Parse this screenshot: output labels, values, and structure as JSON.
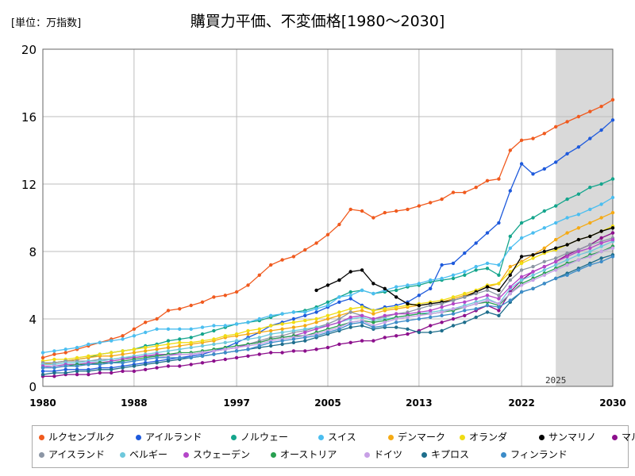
{
  "unit_label": "[単位：万指数]",
  "chart_data": {
    "type": "line",
    "title": "購買力平価、不変価格[1980～2030]",
    "ylim": [
      0,
      20
    ],
    "yticks": [
      0,
      4,
      8,
      12,
      16,
      20
    ],
    "xlim": [
      1980,
      2030
    ],
    "xticks": [
      1980,
      1988,
      1997,
      2005,
      2013,
      2022,
      2030
    ],
    "forecast_start": 2025,
    "forecast_label": "2025",
    "grid": true,
    "legend_position": "bottom",
    "series": [
      {
        "name": "ルクセンブルク",
        "color": "#f05a1e",
        "start": 1980,
        "values": [
          1.7,
          1.9,
          2.0,
          2.2,
          2.4,
          2.6,
          2.8,
          3.0,
          3.4,
          3.8,
          4.0,
          4.5,
          4.6,
          4.8,
          5.0,
          5.3,
          5.4,
          5.6,
          6.0,
          6.6,
          7.2,
          7.5,
          7.7,
          8.1,
          8.5,
          9.0,
          9.6,
          10.5,
          10.4,
          10.0,
          10.3,
          10.4,
          10.5,
          10.7,
          10.9,
          11.1,
          11.5,
          11.5,
          11.8,
          12.2,
          12.3,
          14.0,
          14.6,
          14.7,
          15.0,
          15.4,
          15.7,
          16.0,
          16.3,
          16.6,
          17.0
        ]
      },
      {
        "name": "アイルランド",
        "color": "#1e5adc",
        "start": 1980,
        "values": [
          0.9,
          0.9,
          1.0,
          1.0,
          1.0,
          1.1,
          1.1,
          1.2,
          1.3,
          1.4,
          1.5,
          1.6,
          1.7,
          1.8,
          1.9,
          2.1,
          2.3,
          2.6,
          2.9,
          3.2,
          3.6,
          3.8,
          4.0,
          4.2,
          4.4,
          4.7,
          5.0,
          5.2,
          4.8,
          4.5,
          4.7,
          4.8,
          5.0,
          5.4,
          5.8,
          7.2,
          7.3,
          7.9,
          8.5,
          9.1,
          9.7,
          11.6,
          13.2,
          12.6,
          12.9,
          13.3,
          13.8,
          14.2,
          14.7,
          15.2,
          15.8
        ]
      },
      {
        "name": "ノルウェー",
        "color": "#14a58c",
        "start": 1980,
        "values": [
          1.3,
          1.4,
          1.5,
          1.6,
          1.7,
          1.9,
          2.0,
          2.1,
          2.2,
          2.4,
          2.5,
          2.7,
          2.8,
          2.9,
          3.1,
          3.3,
          3.5,
          3.7,
          3.8,
          3.9,
          4.1,
          4.3,
          4.4,
          4.5,
          4.7,
          5.0,
          5.3,
          5.6,
          5.7,
          5.5,
          5.6,
          5.7,
          5.9,
          6.0,
          6.2,
          6.3,
          6.4,
          6.6,
          6.9,
          7.0,
          6.6,
          8.9,
          9.7,
          10.0,
          10.4,
          10.7,
          11.1,
          11.4,
          11.8,
          12.0,
          12.3
        ]
      },
      {
        "name": "スイス",
        "color": "#4bbef0",
        "start": 1980,
        "values": [
          2.0,
          2.1,
          2.2,
          2.3,
          2.5,
          2.6,
          2.7,
          2.8,
          3.0,
          3.2,
          3.4,
          3.4,
          3.4,
          3.4,
          3.5,
          3.6,
          3.6,
          3.7,
          3.8,
          4.0,
          4.2,
          4.3,
          4.4,
          4.4,
          4.6,
          4.8,
          5.3,
          5.4,
          5.7,
          5.5,
          5.7,
          5.9,
          6.0,
          6.1,
          6.3,
          6.4,
          6.6,
          6.8,
          7.1,
          7.3,
          7.2,
          8.2,
          8.8,
          9.1,
          9.4,
          9.7,
          10.0,
          10.2,
          10.5,
          10.8,
          11.2
        ]
      },
      {
        "name": "デンマーク",
        "color": "#f5aa14",
        "start": 1980,
        "values": [
          1.3,
          1.4,
          1.5,
          1.6,
          1.7,
          1.8,
          1.8,
          1.9,
          2.0,
          2.1,
          2.2,
          2.3,
          2.4,
          2.5,
          2.6,
          2.7,
          2.9,
          3.0,
          3.1,
          3.2,
          3.3,
          3.4,
          3.5,
          3.6,
          3.8,
          4.0,
          4.2,
          4.4,
          4.5,
          4.3,
          4.5,
          4.6,
          4.7,
          4.8,
          4.9,
          5.0,
          5.2,
          5.4,
          5.6,
          5.9,
          6.1,
          7.1,
          7.4,
          7.8,
          8.2,
          8.7,
          9.1,
          9.4,
          9.7,
          10.0,
          10.3
        ]
      },
      {
        "name": "オランダ",
        "color": "#f0dc14",
        "start": 1980,
        "values": [
          1.5,
          1.6,
          1.6,
          1.7,
          1.8,
          1.9,
          2.0,
          2.1,
          2.2,
          2.3,
          2.4,
          2.5,
          2.6,
          2.6,
          2.7,
          2.8,
          3.0,
          3.1,
          3.3,
          3.4,
          3.6,
          3.7,
          3.8,
          3.9,
          4.0,
          4.2,
          4.4,
          4.6,
          4.7,
          4.5,
          4.6,
          4.7,
          4.8,
          4.9,
          5.0,
          5.1,
          5.3,
          5.5,
          5.7,
          6.0,
          6.1,
          6.8,
          7.3,
          7.6,
          7.9,
          8.1,
          8.4,
          8.7,
          8.9,
          9.2,
          9.5
        ]
      },
      {
        "name": "サンマリノ",
        "color": "#000000",
        "start": 2004,
        "values": [
          5.7,
          6.0,
          6.3,
          6.8,
          6.9,
          6.1,
          5.8,
          5.3,
          4.9,
          4.8,
          4.9,
          5.0,
          5.1,
          5.3,
          5.6,
          5.9,
          5.7,
          6.6,
          7.7,
          7.8,
          8.0,
          8.2,
          8.4,
          8.7,
          8.9,
          9.2,
          9.4
        ]
      },
      {
        "name": "マルタ",
        "color": "#8c0f8c",
        "start": 1980,
        "values": [
          0.6,
          0.6,
          0.7,
          0.7,
          0.7,
          0.8,
          0.8,
          0.9,
          0.9,
          1.0,
          1.1,
          1.2,
          1.2,
          1.3,
          1.4,
          1.5,
          1.6,
          1.7,
          1.8,
          1.9,
          2.0,
          2.0,
          2.1,
          2.1,
          2.2,
          2.3,
          2.5,
          2.6,
          2.7,
          2.7,
          2.9,
          3.0,
          3.1,
          3.3,
          3.6,
          3.8,
          4.0,
          4.2,
          4.5,
          4.8,
          4.5,
          5.6,
          6.3,
          6.8,
          7.1,
          7.4,
          7.8,
          8.1,
          8.4,
          8.8,
          9.1
        ]
      },
      {
        "name": "アイスランド",
        "color": "#8c96a5",
        "start": 1980,
        "values": [
          1.4,
          1.4,
          1.5,
          1.5,
          1.5,
          1.6,
          1.6,
          1.7,
          1.7,
          1.8,
          1.8,
          1.9,
          1.9,
          1.9,
          2.0,
          2.1,
          2.2,
          2.3,
          2.5,
          2.7,
          2.9,
          3.0,
          3.2,
          3.3,
          3.5,
          3.7,
          4.0,
          4.4,
          4.2,
          4.0,
          4.1,
          4.3,
          4.4,
          4.6,
          4.8,
          4.9,
          5.1,
          5.3,
          5.5,
          5.7,
          5.4,
          6.3,
          6.9,
          7.1,
          7.4,
          7.6,
          7.9,
          8.1,
          8.4,
          8.6,
          8.8
        ]
      },
      {
        "name": "ベルギー",
        "color": "#6ec8dc",
        "start": 1980,
        "values": [
          1.3,
          1.3,
          1.4,
          1.4,
          1.5,
          1.5,
          1.6,
          1.7,
          1.8,
          1.9,
          2.0,
          2.1,
          2.2,
          2.3,
          2.4,
          2.5,
          2.6,
          2.7,
          2.8,
          2.9,
          3.1,
          3.2,
          3.3,
          3.4,
          3.5,
          3.6,
          3.8,
          4.0,
          4.1,
          3.9,
          4.0,
          4.1,
          4.2,
          4.3,
          4.4,
          4.5,
          4.6,
          4.8,
          5.0,
          5.2,
          4.9,
          5.8,
          6.3,
          6.6,
          6.9,
          7.2,
          7.5,
          7.8,
          8.0,
          8.3,
          8.6
        ]
      },
      {
        "name": "スウェーデン",
        "color": "#b446c8",
        "start": 1980,
        "values": [
          1.2,
          1.2,
          1.3,
          1.3,
          1.4,
          1.4,
          1.5,
          1.6,
          1.7,
          1.8,
          1.9,
          1.9,
          1.9,
          1.9,
          2.0,
          2.1,
          2.2,
          2.3,
          2.5,
          2.6,
          2.8,
          2.9,
          3.0,
          3.2,
          3.4,
          3.6,
          3.8,
          4.1,
          4.2,
          4.0,
          4.2,
          4.3,
          4.3,
          4.4,
          4.5,
          4.7,
          4.9,
          5.0,
          5.2,
          5.4,
          5.2,
          5.9,
          6.5,
          6.8,
          7.1,
          7.4,
          7.7,
          8.0,
          8.2,
          8.5,
          8.7
        ]
      },
      {
        "name": "オーストリア",
        "color": "#28a050",
        "start": 1980,
        "values": [
          1.1,
          1.2,
          1.2,
          1.3,
          1.3,
          1.4,
          1.4,
          1.5,
          1.6,
          1.7,
          1.8,
          1.9,
          2.0,
          2.0,
          2.1,
          2.2,
          2.3,
          2.4,
          2.5,
          2.6,
          2.8,
          2.9,
          3.0,
          3.0,
          3.2,
          3.4,
          3.6,
          3.8,
          3.9,
          3.8,
          3.9,
          4.1,
          4.2,
          4.3,
          4.3,
          4.4,
          4.5,
          4.7,
          4.9,
          5.0,
          4.8,
          5.5,
          6.1,
          6.4,
          6.7,
          7.0,
          7.3,
          7.5,
          7.8,
          8.0,
          8.3
        ]
      },
      {
        "name": "ドイツ",
        "color": "#c8a0e6",
        "start": 1980,
        "values": [
          1.1,
          1.2,
          1.2,
          1.2,
          1.3,
          1.3,
          1.4,
          1.4,
          1.5,
          1.6,
          1.7,
          1.8,
          1.9,
          1.9,
          2.0,
          2.1,
          2.2,
          2.3,
          2.4,
          2.5,
          2.7,
          2.8,
          2.9,
          3.0,
          3.1,
          3.3,
          3.5,
          3.8,
          3.9,
          3.6,
          3.8,
          4.0,
          4.1,
          4.2,
          4.3,
          4.4,
          4.6,
          4.7,
          4.9,
          5.1,
          4.9,
          5.5,
          6.0,
          6.3,
          6.6,
          6.9,
          7.2,
          7.5,
          7.7,
          8.0,
          8.2
        ]
      },
      {
        "name": "キプロス",
        "color": "#1e6e8c",
        "start": 1980,
        "values": [
          0.7,
          0.8,
          0.8,
          0.9,
          0.9,
          1.0,
          1.0,
          1.1,
          1.2,
          1.3,
          1.4,
          1.5,
          1.6,
          1.7,
          1.8,
          1.9,
          2.0,
          2.1,
          2.2,
          2.3,
          2.4,
          2.5,
          2.6,
          2.7,
          2.9,
          3.1,
          3.3,
          3.5,
          3.6,
          3.4,
          3.5,
          3.5,
          3.4,
          3.2,
          3.2,
          3.3,
          3.6,
          3.8,
          4.1,
          4.4,
          4.2,
          5.0,
          5.6,
          5.8,
          6.1,
          6.4,
          6.7,
          7.0,
          7.3,
          7.6,
          7.8
        ]
      },
      {
        "name": "フィンランド",
        "color": "#3c8cc8",
        "start": 1980,
        "values": [
          1.1,
          1.1,
          1.2,
          1.2,
          1.3,
          1.3,
          1.4,
          1.4,
          1.5,
          1.6,
          1.7,
          1.7,
          1.7,
          1.7,
          1.8,
          1.9,
          2.0,
          2.1,
          2.2,
          2.4,
          2.6,
          2.7,
          2.8,
          2.9,
          3.0,
          3.2,
          3.4,
          3.7,
          3.8,
          3.5,
          3.6,
          3.8,
          3.9,
          4.0,
          4.1,
          4.2,
          4.3,
          4.5,
          4.6,
          4.8,
          4.7,
          5.1,
          5.6,
          5.8,
          6.1,
          6.4,
          6.6,
          6.9,
          7.2,
          7.4,
          7.7
        ]
      }
    ]
  }
}
